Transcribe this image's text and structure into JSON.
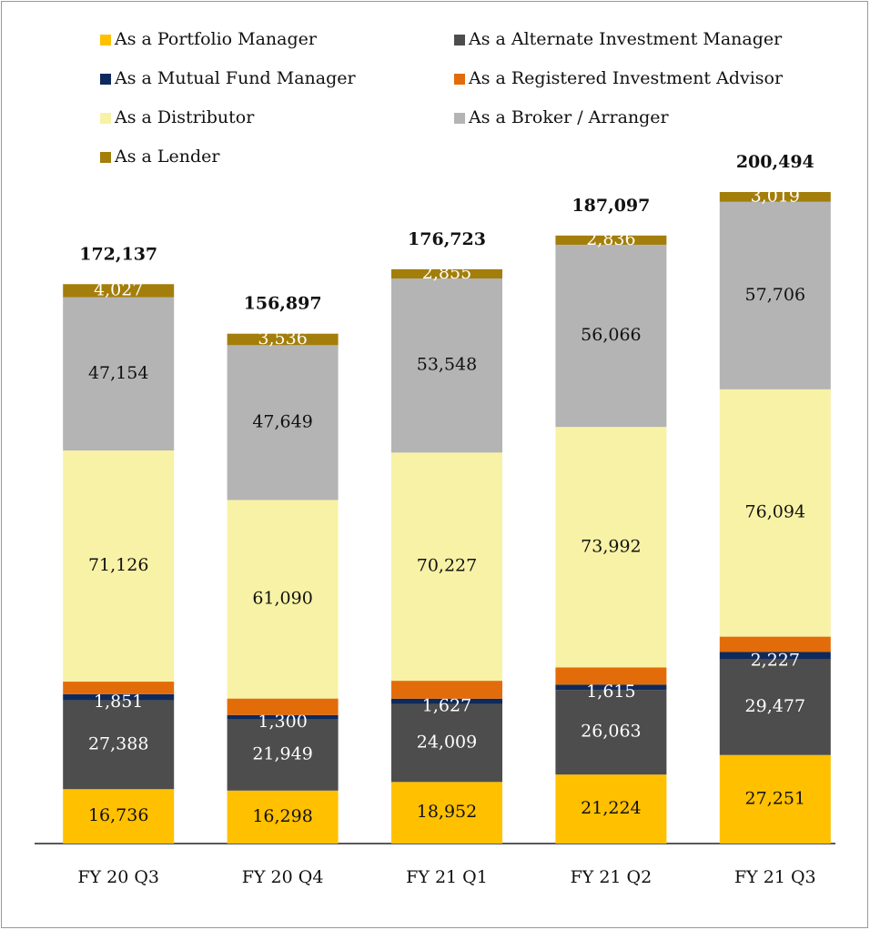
{
  "chart_data": {
    "type": "stacked_bar",
    "categories": [
      "FY 20 Q3",
      "FY 20 Q4",
      "FY 21 Q1",
      "FY 21 Q2",
      "FY 21 Q3"
    ],
    "series": [
      {
        "name": "As a Portfolio Manager",
        "color": "#FFC000",
        "values": [
          16736,
          16298,
          18952,
          21224,
          27251
        ],
        "value_labels": [
          "16,736",
          "16,298",
          "18,952",
          "21,224",
          "27,251"
        ]
      },
      {
        "name": "As a Alternate Investment Manager",
        "color": "#4D4D4D",
        "values": [
          27388,
          21949,
          24009,
          26063,
          29477
        ],
        "value_labels": [
          "27,388",
          "21,949",
          "24,009",
          "26,063",
          "29,477"
        ]
      },
      {
        "name": "As a Mutual Fund Manager",
        "color": "#0E2A5C",
        "values": [
          1851,
          1300,
          1627,
          1615,
          2227
        ],
        "value_labels": [
          "1,851",
          "1,300",
          "1,627",
          "1,615",
          "2,227"
        ]
      },
      {
        "name": "As a Registered Investment Advisor",
        "color": "#E36C0A",
        "values": [
          3856,
          5075,
          5505,
          5301,
          4720
        ],
        "value_labels": [
          "3,856",
          "5,075",
          "5,505",
          "5,301",
          "4,720"
        ]
      },
      {
        "name": "As a Distributor",
        "color": "#F8F2A6",
        "values": [
          71126,
          61090,
          70227,
          73992,
          76094
        ],
        "value_labels": [
          "71,126",
          "61,090",
          "70,227",
          "73,992",
          "76,094"
        ]
      },
      {
        "name": "As a Broker / Arranger",
        "color": "#B4B4B4",
        "values": [
          47154,
          47649,
          53548,
          56066,
          57706
        ],
        "value_labels": [
          "47,154",
          "47,649",
          "53,548",
          "56,066",
          "57,706"
        ]
      },
      {
        "name": "As a Lender",
        "color": "#A37E0B",
        "values": [
          4027,
          3536,
          2855,
          2836,
          3019
        ],
        "value_labels": [
          "4,027",
          "3,536",
          "2,855",
          "2,836",
          "3,019"
        ]
      }
    ],
    "totals": {
      "values": [
        172137,
        156897,
        176723,
        187097,
        200494
      ],
      "value_labels": [
        "172,137",
        "156,897",
        "176,723",
        "187,097",
        "200,494"
      ]
    }
  }
}
